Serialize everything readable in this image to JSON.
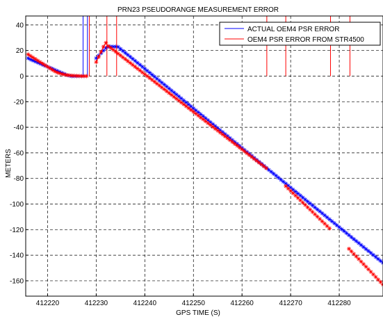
{
  "chart_data": {
    "type": "line",
    "title": "PRN23 PSEUDORANGE MEASUREMENT ERROR",
    "xlabel": "GPS TIME (S)",
    "ylabel": "METERS",
    "xlim": [
      412215.5,
      412289
    ],
    "ylim": [
      -172,
      47
    ],
    "xticks": [
      412220,
      412230,
      412240,
      412250,
      412260,
      412270,
      412280
    ],
    "yticks": [
      40,
      20,
      0,
      -20,
      -40,
      -60,
      -80,
      -100,
      -120,
      -140,
      -160
    ],
    "grid": true,
    "legend_position": "top-right",
    "series": [
      {
        "name": "ACTUAL OEM4 PSR ERROR",
        "color": "#0000ff",
        "marker": "*",
        "segments": [
          {
            "x0": 412216,
            "x1": 412227.5,
            "y": [
              14,
              13,
              12.2,
              11.4,
              10.6,
              9.8,
              8.9,
              8.1,
              7.3,
              6.5,
              5.7,
              4.8,
              4.0,
              3.2,
              2.4,
              1.6,
              0.8,
              0.3,
              0.0,
              0.0,
              0.0,
              0.0,
              0.0,
              0.0
            ]
          },
          {
            "x0": 412230,
            "x1": 412234,
            "y": [
              14,
              16,
              18,
              20,
              22,
              23,
              23,
              23,
              23
            ]
          },
          {
            "x0": 412234.5,
            "x1": 412289,
            "y": [
              22.8,
              -146
            ]
          }
        ],
        "spikes": [
          412227.3,
          412228.2
        ]
      },
      {
        "name": "OEM4 PSR ERROR FROM STR4500",
        "color": "#ff0000",
        "marker": "*",
        "segments": [
          {
            "x0": 412216,
            "x1": 412228,
            "y": [
              17,
              15.7,
              14.5,
              13.3,
              12.1,
              10.9,
              9.7,
              8.5,
              7.3,
              6.1,
              4.9,
              3.7,
              2.8,
              2.2,
              1.6,
              1.2,
              0.8,
              0.6,
              0.4,
              0.3,
              0.2,
              0.1,
              0.0,
              0.0,
              0.0
            ]
          },
          {
            "x0": 412230,
            "x1": 412232,
            "y": [
              11,
              15,
              19,
              23,
              26
            ]
          },
          {
            "x0": 412232.5,
            "x1": 412265,
            "y": [
              23.5,
              -72
            ]
          },
          {
            "x0": 412269,
            "x1": 412278,
            "y": [
              -86,
              -119
            ]
          },
          {
            "x0": 412282,
            "x1": 412289,
            "y": [
              -135,
              -163
            ]
          }
        ],
        "spikes": [
          412228.6,
          412232.2,
          412234.2,
          412265.1,
          412269,
          412278.2,
          412282.2
        ]
      }
    ]
  }
}
